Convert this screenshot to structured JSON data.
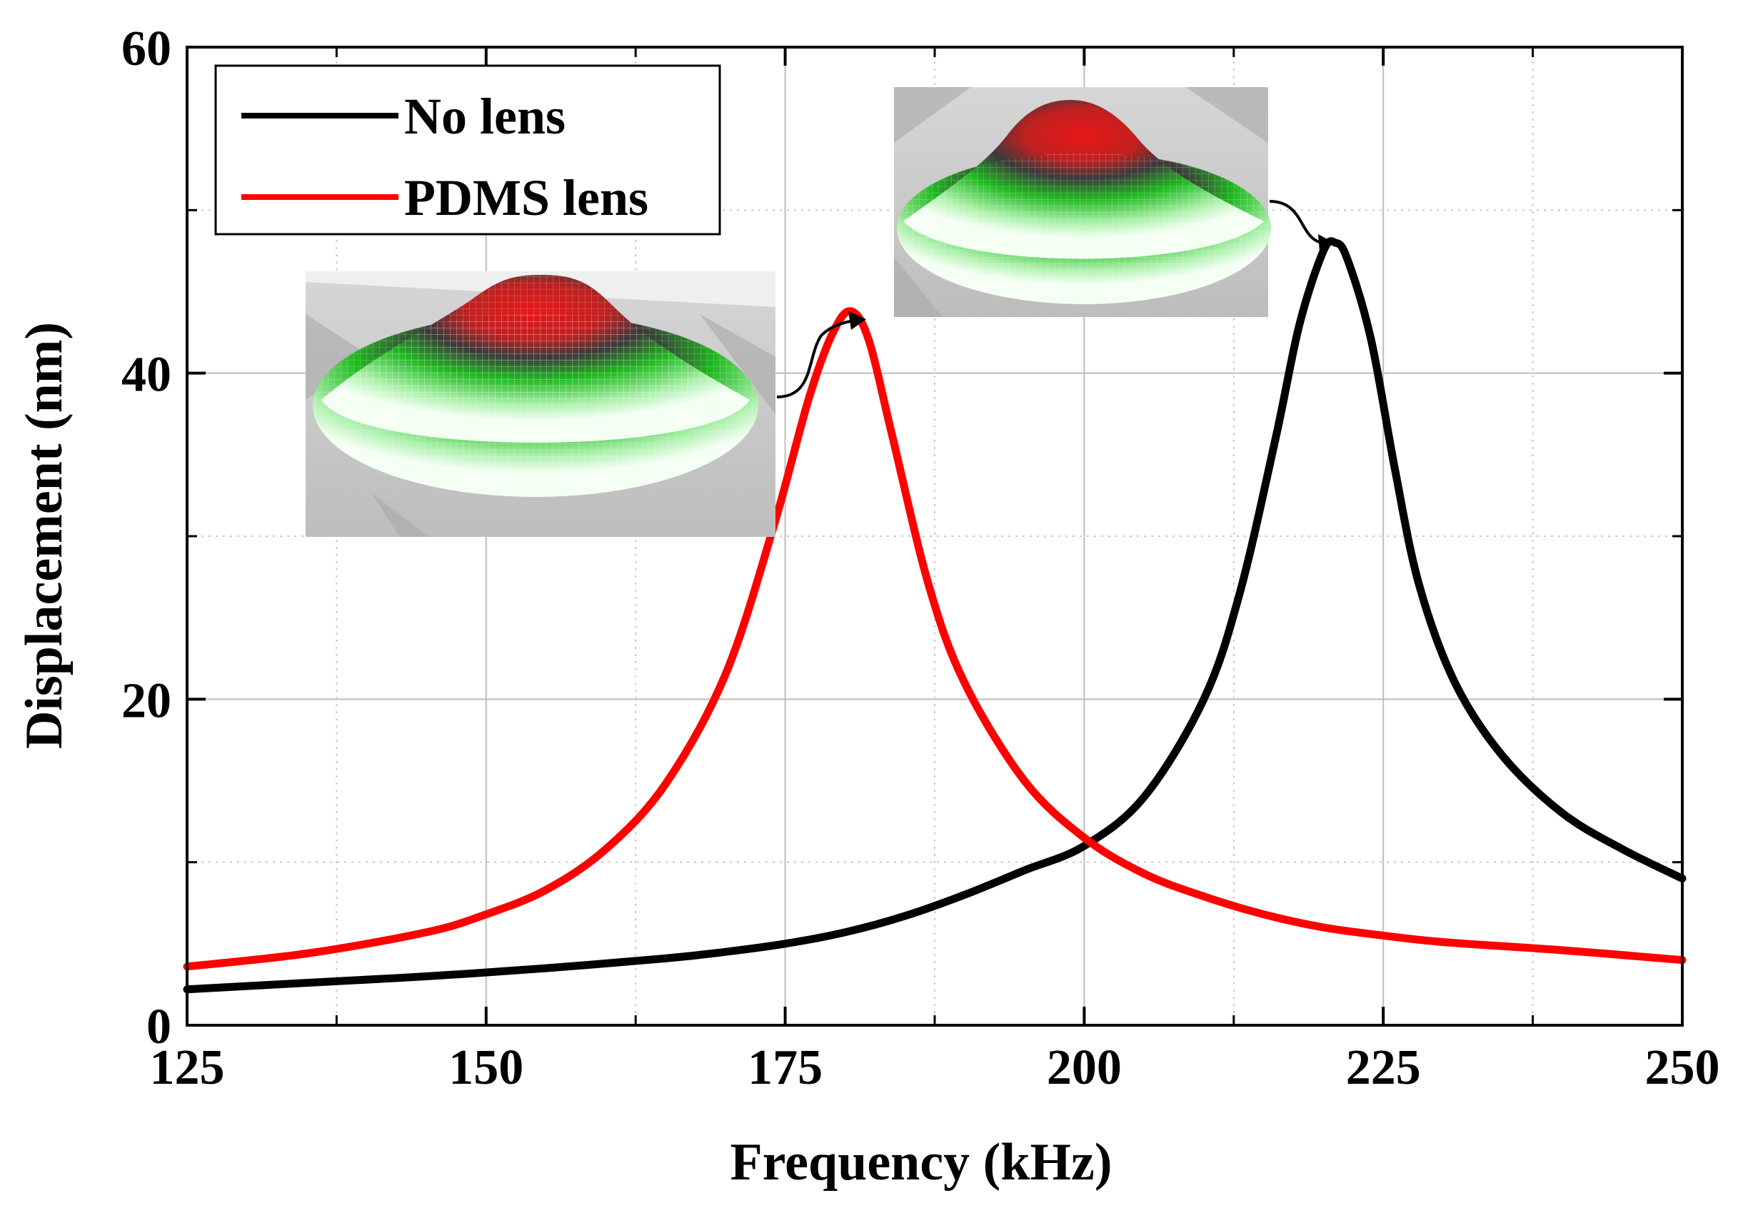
{
  "chart_data": {
    "type": "line",
    "title": "",
    "xlabel": "Frequency (kHz)",
    "ylabel": "Displacement (nm)",
    "xlim": [
      125,
      250
    ],
    "ylim": [
      0,
      60
    ],
    "xticks": [
      125,
      150,
      175,
      200,
      225,
      250
    ],
    "yticks": [
      0,
      20,
      40,
      60
    ],
    "xtick_labels": [
      "125",
      "150",
      "175",
      "200",
      "225",
      "250"
    ],
    "ytick_labels": [
      "0",
      "20",
      "40",
      "60"
    ],
    "grid": true,
    "legend_position": "top-left",
    "series": [
      {
        "name": "No lens",
        "color": "#000000",
        "x": [
          125,
          135,
          145,
          155,
          165,
          170,
          175,
          180,
          185,
          190,
          195,
          200,
          205,
          210,
          213,
          216,
          218,
          220,
          221,
          222,
          224,
          226,
          228,
          231,
          235,
          240,
          245,
          250
        ],
        "y": [
          2.2,
          2.6,
          3.0,
          3.5,
          4.1,
          4.5,
          5.0,
          5.7,
          6.7,
          8.0,
          9.5,
          11.0,
          14.0,
          20.0,
          26.5,
          36.0,
          43.0,
          47.5,
          48.0,
          47.0,
          42.0,
          34.0,
          27.0,
          21.0,
          16.5,
          13.0,
          10.8,
          9.0
        ]
      },
      {
        "name": "PDMS lens",
        "color": "#ff0000",
        "x": [
          125,
          135,
          145,
          150,
          155,
          160,
          165,
          170,
          174,
          177,
          179,
          180.5,
          182,
          184,
          187,
          190,
          195,
          200,
          205,
          210,
          215,
          220,
          225,
          230,
          240,
          250
        ],
        "y": [
          3.6,
          4.4,
          5.7,
          6.8,
          8.3,
          10.8,
          14.8,
          21.5,
          30.5,
          38.5,
          42.5,
          43.8,
          42.0,
          36.0,
          27.0,
          21.0,
          15.0,
          11.5,
          9.3,
          7.9,
          6.8,
          6.0,
          5.5,
          5.1,
          4.6,
          4.0
        ]
      }
    ]
  },
  "insets": [
    {
      "name": "mode-shape-pdms-lens",
      "points_to": "PDMS lens peak"
    },
    {
      "name": "mode-shape-no-lens",
      "points_to": "No lens peak"
    }
  ]
}
